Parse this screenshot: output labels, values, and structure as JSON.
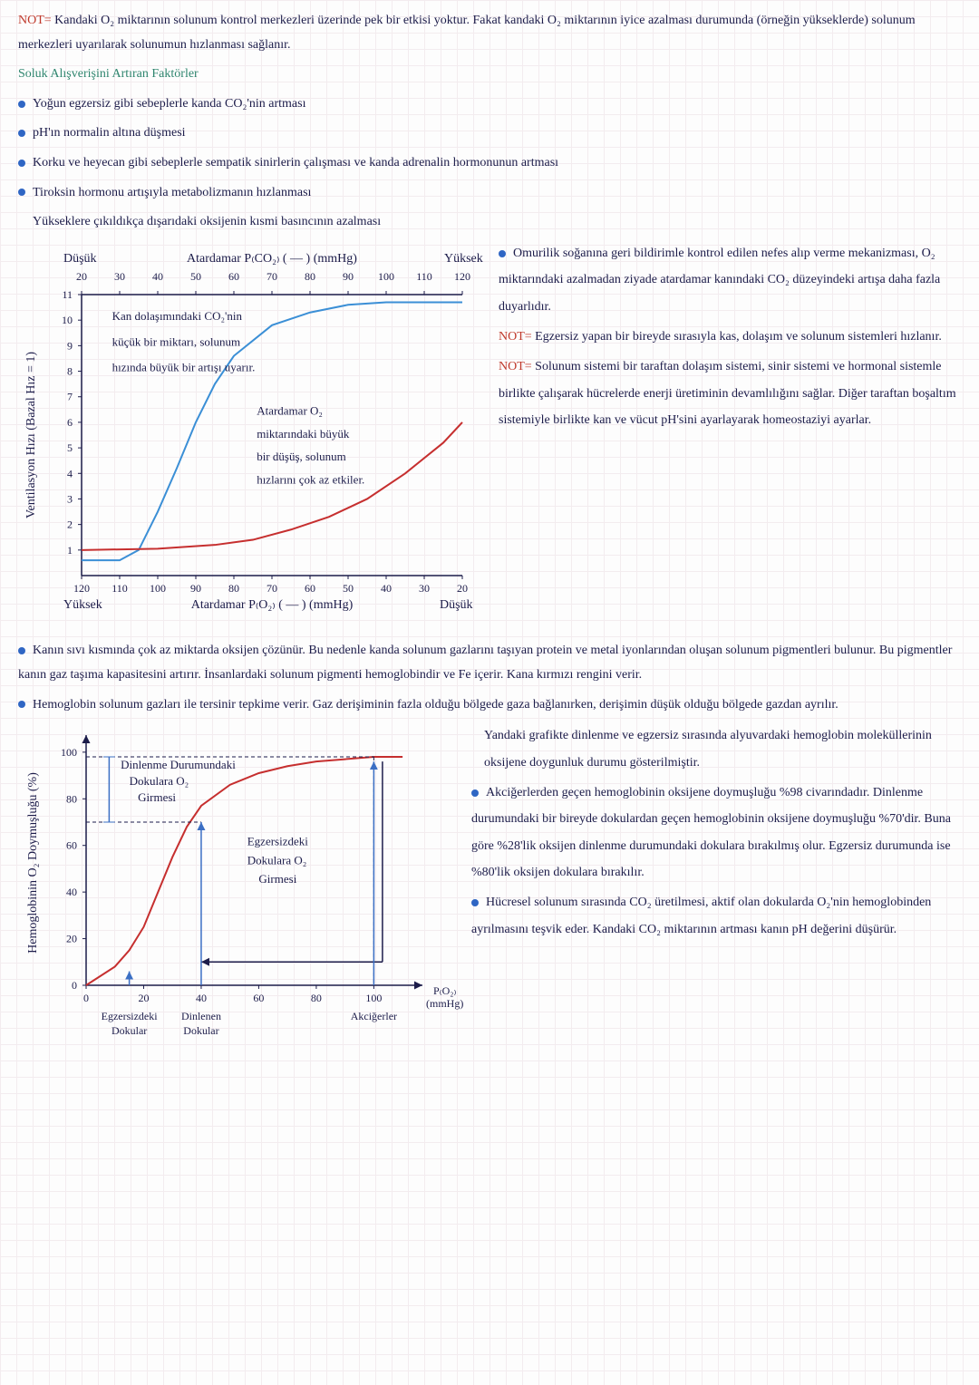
{
  "note1_label": "NOT=",
  "note1_text": " Kandaki O₂ miktarının solunum kontrol merkezleri üzerinde pek bir etkisi yoktur. Fakat kandaki O₂ miktarının iyice azalması durumunda (örneğin yükseklerde) solunum merkezleri uyarılarak solunumun hızlanması sağlanır.",
  "heading_factors": "Soluk Alışverişini Artıran Faktörler",
  "bullets": [
    "Yoğun egzersiz gibi sebeplerle kanda CO₂'nin artması",
    "pH'ın normalin altına düşmesi",
    "Korku ve heyecan gibi sebeplerle sempatik sinirlerin çalışması ve kanda adrenalin hormonunun artması",
    "Tiroksin hormonu artışıyla metabolizmanın hızlanması"
  ],
  "sub_line": "Yükseklere çıkıldıkça dışarıdaki oksijenin kısmi basıncının azalması",
  "chart1": {
    "y_label": "Ventilasyon Hızı (Bazal Hız = 1)",
    "top_label_left": "Düşük",
    "top_label_right": "Yüksek",
    "top_axis_title": "Atardamar P₍CO₂₎ ( — ) (mmHg)",
    "bottom_label_left": "Yüksek",
    "bottom_label_right": "Düşük",
    "bottom_axis_title": "Atardamar P₍O₂₎ ( — ) (mmHg)",
    "top_ticks": [
      "20",
      "30",
      "40",
      "50",
      "60",
      "70",
      "80",
      "90",
      "100",
      "110",
      "120"
    ],
    "bottom_ticks": [
      "120",
      "110",
      "100",
      "90",
      "80",
      "70",
      "60",
      "50",
      "40",
      "30",
      "20"
    ],
    "y_ticks": [
      "1",
      "2",
      "3",
      "4",
      "5",
      "6",
      "7",
      "8",
      "9",
      "10",
      "11"
    ],
    "anno_blue_l1": "Kan dolaşımındaki CO₂'nin",
    "anno_blue_l2": "küçük bir miktarı, solunum",
    "anno_blue_l3": "hızında büyük bir artışı uyarır.",
    "anno_red_l1": "Atardamar O₂",
    "anno_red_l2": "miktarındaki büyük",
    "anno_red_l3": "bir düşüş, solunum",
    "anno_red_l4": "hızlarını çok az etkiler.",
    "blue_color": "#3b8fd6",
    "red_color": "#c62f2f",
    "axis_color": "#1c1c4a",
    "blue_points": [
      [
        20,
        0.6
      ],
      [
        30,
        0.6
      ],
      [
        35,
        1
      ],
      [
        40,
        2.5
      ],
      [
        45,
        4.2
      ],
      [
        50,
        6
      ],
      [
        55,
        7.5
      ],
      [
        60,
        8.6
      ],
      [
        70,
        9.8
      ],
      [
        80,
        10.3
      ],
      [
        90,
        10.6
      ],
      [
        100,
        10.7
      ],
      [
        110,
        10.7
      ],
      [
        120,
        10.7
      ]
    ],
    "red_points": [
      [
        20,
        1
      ],
      [
        40,
        1.05
      ],
      [
        55,
        1.2
      ],
      [
        65,
        1.4
      ],
      [
        75,
        1.8
      ],
      [
        85,
        2.3
      ],
      [
        95,
        3
      ],
      [
        105,
        4
      ],
      [
        115,
        5.2
      ],
      [
        120,
        6
      ]
    ]
  },
  "side1": {
    "p1": "Omurilik soğanına geri bildirimle kontrol edilen nefes alıp verme mekanizması, O₂ miktarındaki azalmadan ziyade atardamar kanındaki CO₂ düzeyindeki artışa daha fazla duyarlıdır.",
    "note2_label": "NOT=",
    "note2_text": " Egzersiz yapan bir bireyde sırasıyla kas, dolaşım ve solunum sistemleri hızlanır.",
    "note3_label": "NOT=",
    "note3_text": " Solunum sistemi bir taraftan dolaşım sistemi, sinir sistemi ve hormonal sistemle birlikte çalışarak hücrelerde enerji üretiminin devamlılığını sağlar. Diğer taraftan boşaltım sistemiyle birlikte kan ve vücut pH'sini ayarlayarak homeostaziyi ayarlar."
  },
  "mid": {
    "b1": "Kanın sıvı kısmında çok az miktarda oksijen çözünür. Bu nedenle kanda solunum gazlarını taşıyan protein ve metal iyonlarından oluşan solunum pigmentleri bulunur. Bu pigmentler kanın gaz taşıma kapasitesini artırır. İnsanlardaki solunum pigmenti hemoglobindir ve Fe içerir. Kana kırmızı rengini verir.",
    "b2": "Hemoglobin solunum gazları ile tersinir tepkime verir. Gaz derişiminin fazla olduğu bölgede gaza bağlanırken, derişimin düşük olduğu bölgede gazdan ayrılır."
  },
  "chart2": {
    "y_label": "Hemoglobinin O₂ Doymuşluğu (%)",
    "x_label": "P₍O₂₎ (mmHg)",
    "y_ticks": [
      "0",
      "20",
      "40",
      "60",
      "80",
      "100"
    ],
    "x_ticks": [
      "0",
      "20",
      "40",
      "60",
      "80",
      "100"
    ],
    "anno_rest_l1": "Dinlenme Durumundaki",
    "anno_rest_l2": "Dokulara O₂",
    "anno_rest_l3": "Girmesi",
    "anno_ex_l1": "Egzersizdeki",
    "anno_ex_l2": "Dokulara O₂",
    "anno_ex_l3": "Girmesi",
    "lbl_ex_tissue": "Egzersizdeki\nDokular",
    "lbl_rest_tissue": "Dinlenen\nDokular",
    "lbl_lungs": "Akciğerler",
    "red_color": "#c62f2f",
    "axis_color": "#1c1c4a",
    "curve": [
      [
        0,
        0
      ],
      [
        10,
        8
      ],
      [
        15,
        15
      ],
      [
        20,
        25
      ],
      [
        25,
        40
      ],
      [
        30,
        55
      ],
      [
        35,
        68
      ],
      [
        40,
        77
      ],
      [
        50,
        86
      ],
      [
        60,
        91
      ],
      [
        70,
        94
      ],
      [
        80,
        96
      ],
      [
        90,
        97
      ],
      [
        100,
        98
      ],
      [
        110,
        98
      ]
    ]
  },
  "side2": {
    "p1": "Yandaki grafikte dinlenme ve egzersiz sırasında alyuvardaki hemoglobin moleküllerinin oksijene doygunluk durumu gösterilmiştir.",
    "b1": "Akciğerlerden geçen hemoglobinin oksijene doymuşluğu %98 civarındadır. Dinlenme durumundaki bir bireyde dokulardan geçen hemoglobinin oksijene doymuşluğu %70'dir. Buna göre %28'lik oksijen dinlenme durumundaki dokulara bırakılmış olur. Egzersiz durumunda ise %80'lik oksijen dokulara bırakılır.",
    "b2": "Hücresel solunum sırasında CO₂ üretilmesi, aktif olan dokularda O₂'nin hemoglobinden ayrılmasını teşvik eder. Kandaki CO₂ miktarının artması kanın pH değerini düşürür."
  }
}
